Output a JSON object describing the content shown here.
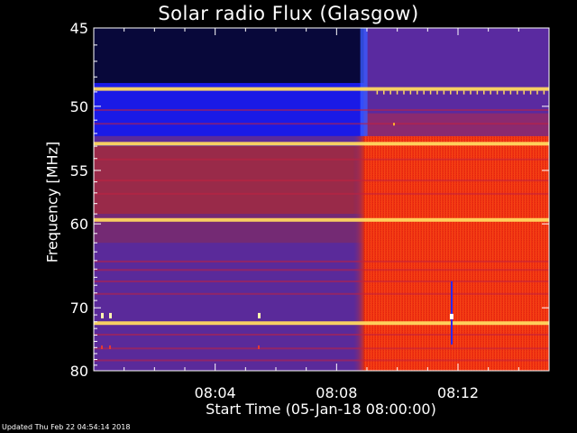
{
  "chart_data": {
    "type": "heatmap",
    "title": "Solar radio Flux (Glasgow)",
    "ylabel": "Frequency [MHz]",
    "xlabel": "Start Time (05-Jan-18 08:00:00)",
    "x_ticks": [
      "08:04",
      "08:08",
      "08:12"
    ],
    "x_tick_minutes": [
      4,
      8,
      12
    ],
    "xlim_minutes": [
      0,
      15
    ],
    "y_ticks": [
      45,
      50,
      55,
      60,
      70,
      80
    ],
    "ylim_mhz": [
      45,
      80
    ],
    "y_scale": "reciprocal",
    "burst_onset_minutes": 8.9,
    "bright_bands_mhz": [
      48.8,
      52.8,
      59.6,
      72.2
    ],
    "colors": {
      "background": "#000000",
      "pre_burst_low": "#5a2a9a",
      "pre_burst_top": "#1a1ae6",
      "post_burst": "#f03010",
      "band": "#ffd860"
    }
  },
  "footer": {
    "updated": "Updated Thu Feb 22 04:54:14 2018"
  }
}
